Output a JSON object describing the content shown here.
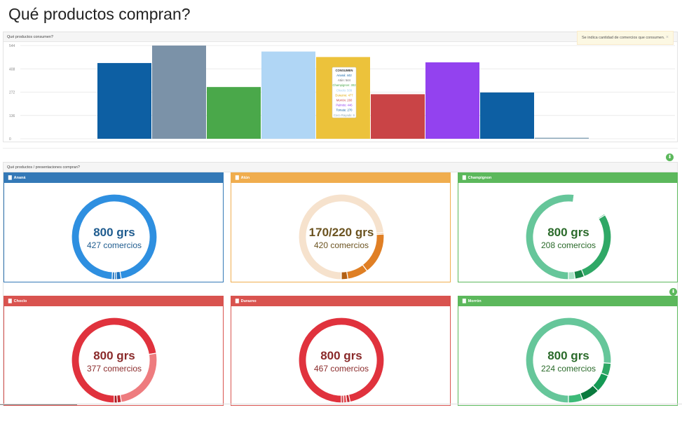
{
  "page": {
    "title": "Qué productos compran?"
  },
  "consumen_panel": {
    "header": "Qué productos consumen?",
    "note": "Se indica cantidad de comercios que consumen.",
    "note_close": "×",
    "tooltip": {
      "title": "CONSUMEN",
      "lines": [
        "Ananá: 442",
        "Atún: 544",
        "Champignon: 302",
        "Choclo: 509",
        "Durazno: 477",
        "Morrón: 260",
        "Palmito: 446",
        "Tomate: 270",
        "Coco Rayado: 6"
      ]
    }
  },
  "chart_data": [
    {
      "type": "bar",
      "title": "Qué productos consumen?",
      "categories": [
        "Ananá",
        "Atún",
        "Champignon",
        "Choclo",
        "Durazno",
        "Morrón",
        "Palmito",
        "Tomate",
        "Coco Rayado"
      ],
      "values": [
        442,
        544,
        302,
        509,
        477,
        260,
        446,
        270,
        6
      ],
      "colors": [
        "#0d5fa3",
        "#7b92a8",
        "#4aa84a",
        "#b0d6f5",
        "#ecc23b",
        "#c94446",
        "#9342ef",
        "#0d5fa3",
        "#8aa6b8"
      ],
      "ylim": [
        0,
        544
      ],
      "yticks": [
        0,
        136,
        272,
        408,
        544
      ],
      "grid": true
    },
    {
      "type": "pie",
      "title": "Ananá",
      "center_label": "800 grs",
      "center_sub": "427 comercios",
      "values": [
        427,
        8,
        3,
        4
      ],
      "colors": [
        "#2e8fe0",
        "#1f73bf",
        "#1f73bf",
        "#1f73bf"
      ]
    },
    {
      "type": "pie",
      "title": "Atún",
      "center_label": "170/220 grs",
      "center_sub": "420 comercios",
      "values": [
        420,
        3,
        90,
        45,
        14
      ],
      "colors": [
        "#f6e2cd",
        "#e39d5a",
        "#e07f25",
        "#df7f24",
        "#b36014"
      ]
    },
    {
      "type": "pie",
      "title": "Champignon",
      "center_label": "800 grs",
      "center_sub": "208 comercios",
      "values": [
        208,
        55,
        2,
        110,
        14,
        10
      ],
      "colors": [
        "#66c69a",
        "#ffffff",
        "#3dba78",
        "#2fa866",
        "#1a8749",
        "#a8e2c5"
      ]
    },
    {
      "type": "pie",
      "title": "Choclo",
      "center_label": "800 grs",
      "center_sub": "377 comercios",
      "values": [
        377,
        130,
        8,
        6
      ],
      "colors": [
        "#e0323d",
        "#ee7c7f",
        "#c3262f",
        "#a8171f"
      ]
    },
    {
      "type": "pie",
      "title": "Durazno",
      "center_label": "800 grs",
      "center_sub": "467 comercios",
      "values": [
        467,
        6,
        6,
        4
      ],
      "colors": [
        "#e0323d",
        "#c3262f",
        "#e85a61",
        "#c3262f"
      ]
    },
    {
      "type": "pie",
      "title": "Morrón",
      "center_label": "800 grs",
      "center_sub": "224 comercios",
      "values": [
        224,
        14,
        20,
        20,
        16
      ],
      "colors": [
        "#66c69a",
        "#2fa866",
        "#159a55",
        "#0a7a3e",
        "#3dba78"
      ]
    }
  ],
  "presentaciones_panel": {
    "header": "Qué productos / presentaciones compran?",
    "cards": [
      {
        "title": "Ananá",
        "head_color": "#3479b7",
        "border_color": "#3479b7",
        "text_color": "#1f5c8f"
      },
      {
        "title": "Atún",
        "head_color": "#f0ad4e",
        "border_color": "#f0ad4e",
        "text_color": "#6b5320"
      },
      {
        "title": "Champignon",
        "head_color": "#5cb85c",
        "border_color": "#5cb85c",
        "text_color": "#2a6a2a"
      },
      {
        "title": "Choclo",
        "head_color": "#d9534f",
        "border_color": "#d9534f",
        "text_color": "#8a2a2a"
      },
      {
        "title": "Durazno",
        "head_color": "#d9534f",
        "border_color": "#d9534f",
        "text_color": "#8a2a2a"
      },
      {
        "title": "Morrón",
        "head_color": "#5cb85c",
        "border_color": "#5cb85c",
        "text_color": "#2a6a2a"
      }
    ]
  },
  "icons": {
    "chart": "bar-chart-icon",
    "download": "download-icon"
  }
}
